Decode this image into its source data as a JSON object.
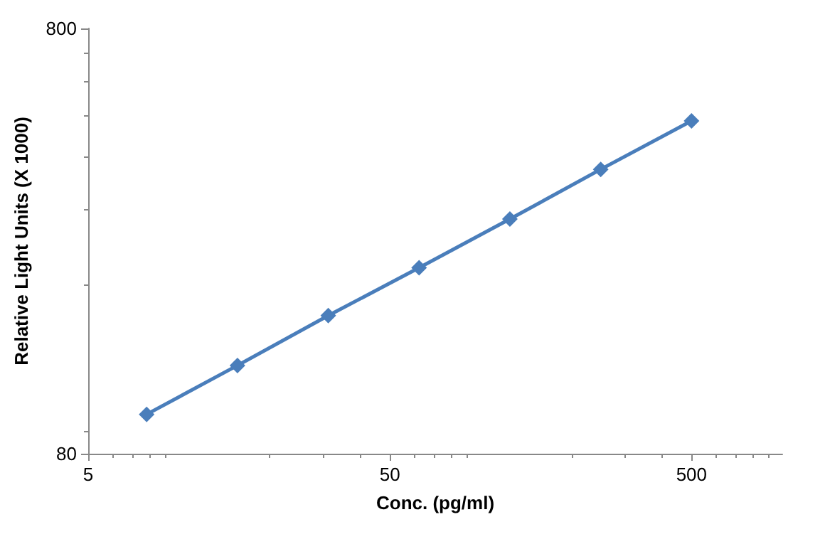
{
  "chart_data": {
    "type": "line",
    "xlabel": "Conc. (pg/ml)",
    "ylabel": "Relative Light Units (X 1000)",
    "x": [
      7.8125,
      15.625,
      31.25,
      62.5,
      125,
      250,
      500
    ],
    "series": [
      {
        "color": "#4a7ebb",
        "values": [
          99,
          129,
          169,
          219,
          285,
          373,
          485
        ]
      }
    ],
    "xlim": [
      5,
      1000
    ],
    "xticks": [
      5,
      50,
      500
    ],
    "ylim": [
      80,
      800
    ],
    "yticks": [
      80,
      800
    ],
    "log": "xy",
    "grid": false,
    "marker": "diamond",
    "line_style": "solid"
  }
}
